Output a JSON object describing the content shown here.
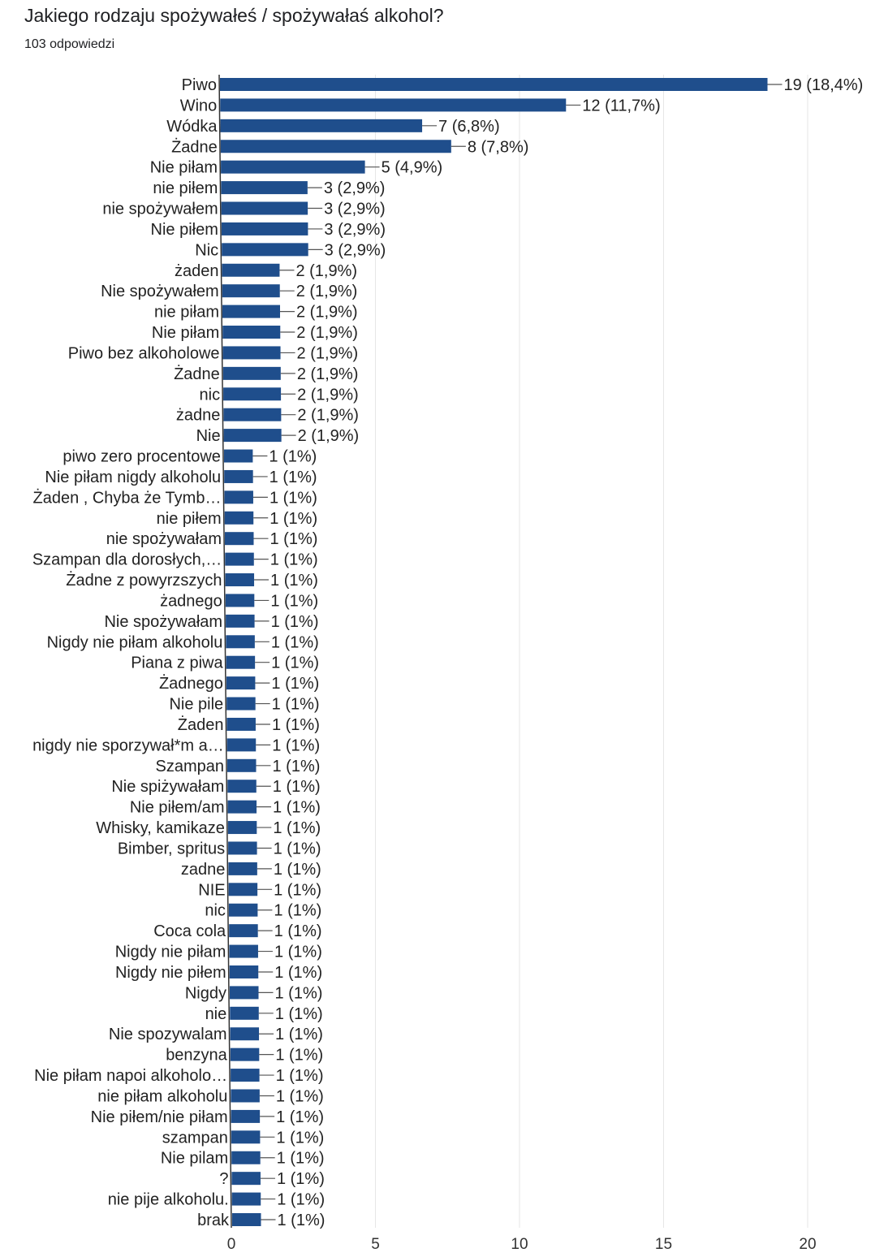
{
  "title": "Jakiego rodzaju spożywałeś / spożywałaś alkohol?",
  "subtitle": "103 odpowiedzi",
  "chart_data": {
    "type": "bar",
    "orientation": "horizontal",
    "categories": [
      "Piwo",
      "Wino",
      "Wódka",
      "Żadne",
      "Nie piłam",
      "nie piłem",
      "nie spożywałem",
      "Nie piłem",
      "Nic",
      "żaden",
      "Nie spożywałem",
      "nie piłam",
      "Nie piłam",
      "Piwo bez alkoholowe",
      "Żadne",
      "nic",
      "żadne",
      "Nie",
      "piwo zero procentowe",
      "Nie piłam nigdy alkoholu",
      "Żaden , Chyba że Tymb…",
      "nie piłem",
      "nie spożywałam",
      "Szampan dla dorosłych,…",
      "Żadne z powyrzszych",
      "żadnego",
      "Nie spożywałam",
      "Nigdy nie piłam alkoholu",
      "Piana z piwa",
      "Żadnego",
      "Nie pile",
      "Żaden",
      "nigdy nie sporzywał*m a…",
      "Szampan",
      "Nie spiżywałam",
      "Nie piłem/am",
      "Whisky, kamikaze",
      "Bimber, spritus",
      "zadne",
      "NIE",
      "nic",
      "Coca cola",
      "Nigdy nie piłam",
      "Nigdy nie piłem",
      "Nigdy",
      "nie",
      "Nie spozywalam",
      "benzyna",
      "Nie piłam napoi alkoholo…",
      "nie piłam alkoholu",
      "Nie piłem/nie piłam",
      "szampan",
      "Nie pilam",
      "?",
      "nie pije alkoholu.",
      "brak"
    ],
    "values": [
      19,
      12,
      7,
      8,
      5,
      3,
      3,
      3,
      3,
      2,
      2,
      2,
      2,
      2,
      2,
      2,
      2,
      2,
      1,
      1,
      1,
      1,
      1,
      1,
      1,
      1,
      1,
      1,
      1,
      1,
      1,
      1,
      1,
      1,
      1,
      1,
      1,
      1,
      1,
      1,
      1,
      1,
      1,
      1,
      1,
      1,
      1,
      1,
      1,
      1,
      1,
      1,
      1,
      1,
      1,
      1
    ],
    "labels": [
      "19 (18,4%)",
      "12 (11,7%)",
      "7 (6,8%)",
      "8 (7,8%)",
      "5 (4,9%)",
      "3 (2,9%)",
      "3 (2,9%)",
      "3 (2,9%)",
      "3 (2,9%)",
      "2 (1,9%)",
      "2 (1,9%)",
      "2 (1,9%)",
      "2 (1,9%)",
      "2 (1,9%)",
      "2 (1,9%)",
      "2 (1,9%)",
      "2 (1,9%)",
      "2 (1,9%)",
      "1 (1%)",
      "1 (1%)",
      "1 (1%)",
      "1 (1%)",
      "1 (1%)",
      "1 (1%)",
      "1 (1%)",
      "1 (1%)",
      "1 (1%)",
      "1 (1%)",
      "1 (1%)",
      "1 (1%)",
      "1 (1%)",
      "1 (1%)",
      "1 (1%)",
      "1 (1%)",
      "1 (1%)",
      "1 (1%)",
      "1 (1%)",
      "1 (1%)",
      "1 (1%)",
      "1 (1%)",
      "1 (1%)",
      "1 (1%)",
      "1 (1%)",
      "1 (1%)",
      "1 (1%)",
      "1 (1%)",
      "1 (1%)",
      "1 (1%)",
      "1 (1%)",
      "1 (1%)",
      "1 (1%)",
      "1 (1%)",
      "1 (1%)",
      "1 (1%)",
      "1 (1%)",
      "1 (1%)"
    ],
    "xticks": [
      0,
      5,
      10,
      15,
      20
    ],
    "xlim": [
      0,
      20
    ],
    "grid": true,
    "bar_color": "#1f4e8c"
  }
}
